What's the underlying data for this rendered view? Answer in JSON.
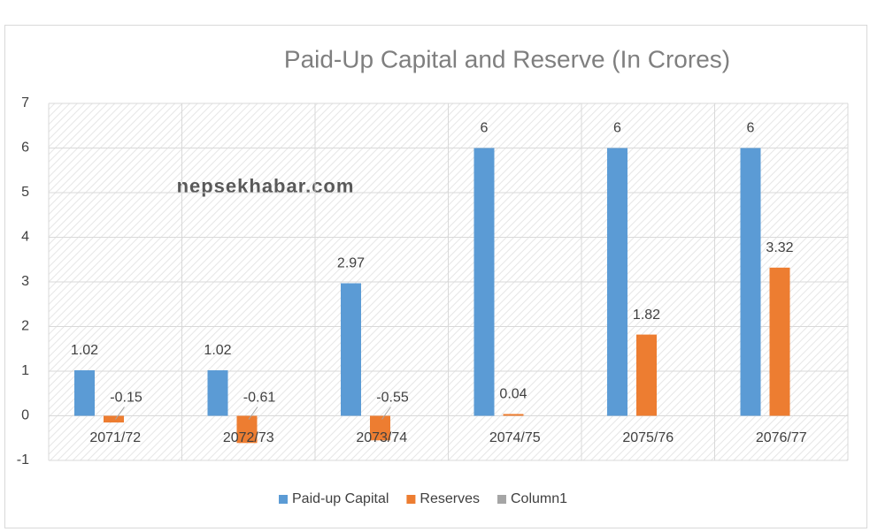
{
  "chart_data": {
    "type": "bar",
    "title": "Paid-Up Capital and Reserve (In Crores)",
    "annotation": "nepsekhabar.com",
    "categories": [
      "2071/72",
      "2072/73",
      "2073/74",
      "2074/75",
      "2075/76",
      "2076/77"
    ],
    "series": [
      {
        "name": "Paid-up Capital",
        "color": "#5b9bd5",
        "values": [
          1.02,
          1.02,
          2.97,
          6,
          6,
          6
        ]
      },
      {
        "name": "Reserves",
        "color": "#ed7d31",
        "values": [
          -0.15,
          -0.61,
          -0.55,
          0.04,
          1.82,
          3.32
        ]
      },
      {
        "name": "Column1",
        "color": "#a5a5a5",
        "values": [
          null,
          null,
          null,
          null,
          null,
          null
        ]
      }
    ],
    "ylim": [
      -1,
      7
    ],
    "yticks": [
      -1,
      0,
      1,
      2,
      3,
      4,
      5,
      6,
      7
    ],
    "grid": true,
    "legend": "bottom"
  }
}
